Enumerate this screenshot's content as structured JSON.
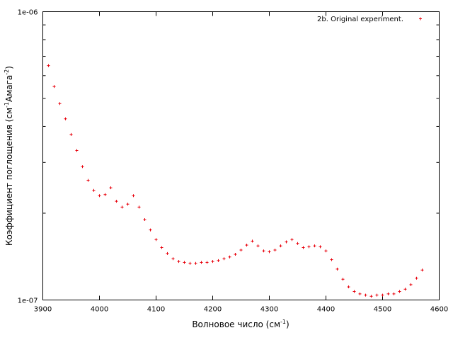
{
  "chart_data": {
    "type": "scatter",
    "title": "",
    "xlabel_main": "Волновое число (см",
    "xlabel_sup": "-1",
    "xlabel_end": ")",
    "ylabel_main": "Коэффициент поглощения (см",
    "ylabel_sup1": "-1",
    "ylabel_mid": "Амага",
    "ylabel_sup2": "-2",
    "ylabel_end": ")",
    "xlim": [
      3900,
      4600
    ],
    "ylim": [
      1e-07,
      1e-06
    ],
    "yscale": "log",
    "grid": false,
    "legend_position": "top-right",
    "x_ticks": [
      3900,
      4000,
      4100,
      4200,
      4300,
      4400,
      4500,
      4600
    ],
    "x_tick_labels": [
      "3900",
      "4000",
      "4100",
      "4200",
      "4300",
      "4400",
      "4500",
      "4600"
    ],
    "y_tick_labels": [
      {
        "value": 1e-06,
        "label": "1e-06"
      },
      {
        "value": 1e-07,
        "label": "1e-07"
      }
    ],
    "y_minor_ticks": [
      2e-07,
      3e-07,
      4e-07,
      5e-07,
      6e-07,
      7e-07,
      8e-07,
      9e-07
    ],
    "series": [
      {
        "name": "2b. Original experiment.",
        "color": "#e8000b",
        "marker": "plus",
        "x": [
          3910,
          3920,
          3930,
          3940,
          3950,
          3960,
          3970,
          3980,
          3990,
          4000,
          4010,
          4020,
          4030,
          4040,
          4050,
          4060,
          4070,
          4080,
          4090,
          4100,
          4110,
          4120,
          4130,
          4140,
          4150,
          4160,
          4170,
          4180,
          4190,
          4200,
          4210,
          4220,
          4230,
          4240,
          4250,
          4260,
          4270,
          4280,
          4290,
          4300,
          4310,
          4320,
          4330,
          4340,
          4350,
          4360,
          4370,
          4380,
          4390,
          4400,
          4410,
          4420,
          4430,
          4440,
          4450,
          4460,
          4470,
          4480,
          4490,
          4500,
          4510,
          4520,
          4530,
          4540,
          4550,
          4560,
          4570
        ],
        "y": [
          6.5e-07,
          5.5e-07,
          4.8e-07,
          4.25e-07,
          3.75e-07,
          3.3e-07,
          2.9e-07,
          2.6e-07,
          2.4e-07,
          2.3e-07,
          2.32e-07,
          2.45e-07,
          2.2e-07,
          2.1e-07,
          2.15e-07,
          2.3e-07,
          2.1e-07,
          1.9e-07,
          1.75e-07,
          1.62e-07,
          1.52e-07,
          1.45e-07,
          1.39e-07,
          1.36e-07,
          1.35e-07,
          1.34e-07,
          1.34e-07,
          1.35e-07,
          1.35e-07,
          1.36e-07,
          1.37e-07,
          1.39e-07,
          1.41e-07,
          1.44e-07,
          1.49e-07,
          1.55e-07,
          1.6e-07,
          1.54e-07,
          1.48e-07,
          1.47e-07,
          1.49e-07,
          1.54e-07,
          1.59e-07,
          1.62e-07,
          1.57e-07,
          1.52e-07,
          1.53e-07,
          1.54e-07,
          1.53e-07,
          1.48e-07,
          1.38e-07,
          1.28e-07,
          1.18e-07,
          1.11e-07,
          1.07e-07,
          1.05e-07,
          1.04e-07,
          1.03e-07,
          1.04e-07,
          1.04e-07,
          1.05e-07,
          1.05e-07,
          1.07e-07,
          1.09e-07,
          1.13e-07,
          1.19e-07,
          1.27e-07
        ]
      }
    ]
  }
}
